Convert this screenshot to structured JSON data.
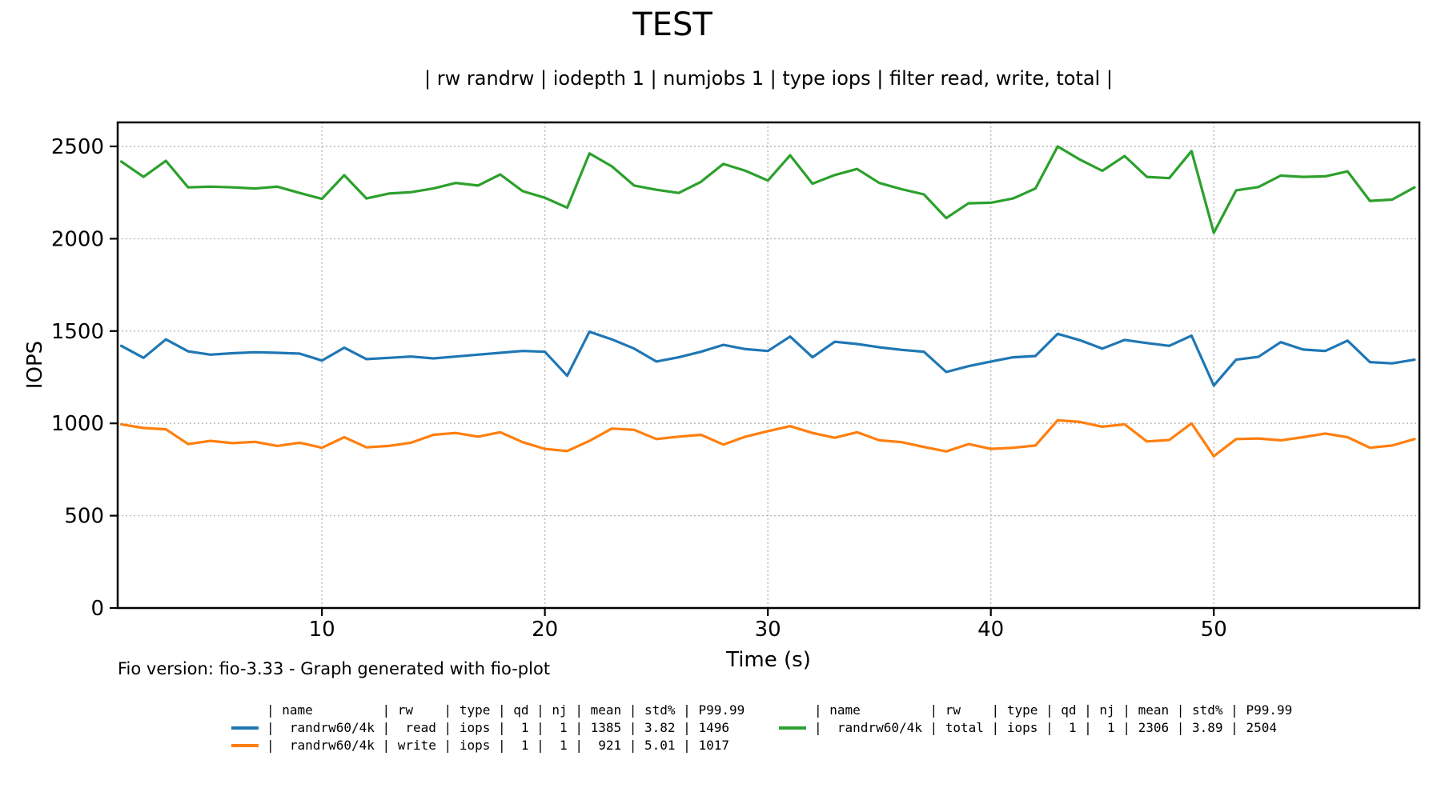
{
  "title": "TEST",
  "subtitle": "| rw randrw | iodepth 1 | numjobs 1 | type iops | filter read, write, total |",
  "footer": "Fio version: fio-3.33 - Graph generated with fio-plot",
  "axes": {
    "ylabel": "IOPS",
    "xlabel": "Time (s)"
  },
  "chart_data": {
    "type": "line",
    "title": "TEST",
    "subtitle": "| rw randrw | iodepth 1 | numjobs 1 | type iops | filter read, write, total |",
    "xlabel": "Time (s)",
    "ylabel": "IOPS",
    "xlim": [
      0.84,
      59.22
    ],
    "ylim": [
      0,
      2630
    ],
    "xticks": [
      10,
      20,
      30,
      40,
      50
    ],
    "yticks": [
      0,
      500,
      1000,
      1500,
      2000,
      2500
    ],
    "grid": true,
    "grid_style": "dotted",
    "legend_position": "bottom",
    "x_start": 1,
    "x_step": 1,
    "series": [
      {
        "name": "randrw60/4k read iops",
        "key": "read",
        "color": "#1f77b4",
        "mean": 1385,
        "std_pct": 3.82,
        "p9999": 1496,
        "values": [
          1420,
          1355,
          1455,
          1390,
          1372,
          1380,
          1385,
          1382,
          1378,
          1340,
          1410,
          1348,
          1355,
          1362,
          1352,
          1362,
          1372,
          1382,
          1392,
          1388,
          1258,
          1496,
          1455,
          1405,
          1335,
          1358,
          1388,
          1425,
          1402,
          1392,
          1470,
          1358,
          1442,
          1430,
          1412,
          1398,
          1388,
          1278,
          1310,
          1335,
          1358,
          1365,
          1485,
          1450,
          1405,
          1452,
          1435,
          1420,
          1475,
          1205,
          1345,
          1360,
          1440,
          1400,
          1392,
          1448,
          1332,
          1325,
          1345
        ]
      },
      {
        "name": "randrw60/4k write iops",
        "key": "write",
        "color": "#ff7f0e",
        "mean": 921,
        "std_pct": 5.01,
        "p9999": 1017,
        "values": [
          995,
          975,
          968,
          888,
          905,
          893,
          900,
          878,
          895,
          868,
          925,
          870,
          878,
          895,
          938,
          948,
          928,
          952,
          898,
          862,
          850,
          905,
          972,
          965,
          915,
          928,
          938,
          885,
          928,
          958,
          985,
          948,
          922,
          952,
          908,
          898,
          872,
          848,
          888,
          862,
          868,
          880,
          1017,
          1008,
          982,
          995,
          902,
          910,
          1000,
          822,
          915,
          918,
          908,
          925,
          945,
          925,
          868,
          880,
          915
        ]
      },
      {
        "name": "randrw60/4k total iops",
        "key": "total",
        "color": "#2ca02c",
        "mean": 2306,
        "std_pct": 3.89,
        "p9999": 2504,
        "values": [
          2418,
          2335,
          2422,
          2278,
          2282,
          2278,
          2272,
          2282,
          2248,
          2216,
          2344,
          2218,
          2245,
          2252,
          2272,
          2302,
          2288,
          2348,
          2258,
          2222,
          2168,
          2462,
          2392,
          2288,
          2265,
          2248,
          2308,
          2405,
          2368,
          2315,
          2452,
          2298,
          2345,
          2378,
          2302,
          2268,
          2240,
          2112,
          2192,
          2195,
          2218,
          2272,
          2500,
          2428,
          2368,
          2448,
          2335,
          2328,
          2475,
          2032,
          2262,
          2280,
          2342,
          2335,
          2338,
          2365,
          2205,
          2212,
          2278
        ]
      }
    ]
  },
  "legend": {
    "left": {
      "header": "| name         | rw    | type | qd | nj | mean | std% | P99.99",
      "rows": [
        {
          "color": "#1f77b4",
          "text": "|  randrw60/4k |  read | iops |  1 |  1 | 1385 | 3.82 | 1496"
        },
        {
          "color": "#ff7f0e",
          "text": "|  randrw60/4k | write | iops |  1 |  1 |  921 | 5.01 | 1017"
        }
      ]
    },
    "right": {
      "header": "| name         | rw    | type | qd | nj | mean | std% | P99.99",
      "rows": [
        {
          "color": "#2ca02c",
          "text": "|  randrw60/4k | total | iops |  1 |  1 | 2306 | 3.89 | 2504"
        }
      ]
    }
  }
}
